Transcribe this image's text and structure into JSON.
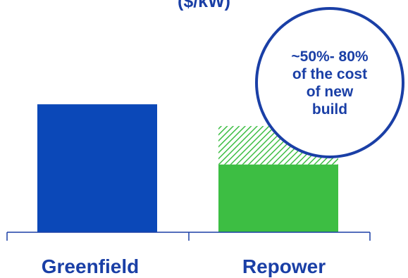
{
  "chart_data": {
    "type": "bar",
    "title": "($/kW)",
    "categories": [
      "Greenfield",
      "Repower"
    ],
    "series": [
      {
        "values": [
          100,
          53
        ]
      },
      {
        "values": [
          0,
          30
        ]
      }
    ],
    "ylim": [
      0,
      110
    ],
    "grid": false,
    "annotation": "~50%- 80%\nof the cost\nof new\nbuild"
  },
  "colors": {
    "greenfield": "#0b48b8",
    "repower": "#3dbe43",
    "hatch": "#3dbe43",
    "axis": "#1a3fa6",
    "text": "#1a3fa6"
  }
}
